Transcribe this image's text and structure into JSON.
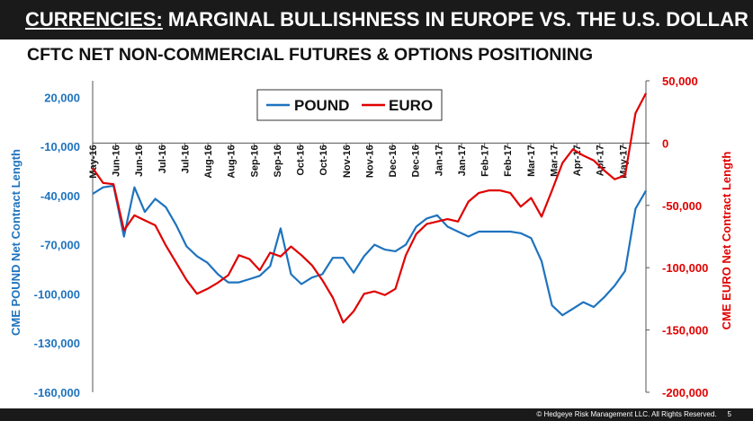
{
  "header": {
    "title_prefix": "CURRENCIES:",
    "title_rest": " MARGINAL BULLISHNESS IN EUROPE VS. THE U.S. DOLLAR"
  },
  "subtitle": "CFTC NET NON-COMMERCIAL FUTURES & OPTIONS POSITIONING",
  "footer": {
    "copyright": "© Hedgeye Risk Management LLC. All Rights Reserved.",
    "page": "5"
  },
  "colors": {
    "pound": "#1e73be",
    "euro": "#e00000"
  },
  "chart_data": {
    "type": "line",
    "ylabel": "CME POUND Net Contract Length",
    "ylabel_right": "CME EURO Net Contract Length",
    "ylim": [
      -160000,
      30000
    ],
    "ylim_right": [
      -200000,
      50000
    ],
    "y_ticks": [
      20000,
      -10000,
      -40000,
      -70000,
      -100000,
      -130000,
      -160000
    ],
    "y_tick_labels": [
      "20,000",
      "-10,000",
      "-40,000",
      "-70,000",
      "-100,000",
      "-130,000",
      "-160,000"
    ],
    "y_ticks_right": [
      50000,
      0,
      -50000,
      -100000,
      -150000,
      -200000
    ],
    "y_tick_labels_right": [
      "50,000",
      "0",
      "-50,000",
      "-100,000",
      "-150,000",
      "-200,000"
    ],
    "x_labels": [
      "May-16",
      "Jun-16",
      "Jun-16",
      "Jul-16",
      "Jul-16",
      "Aug-16",
      "Aug-16",
      "Sep-16",
      "Sep-16",
      "Oct-16",
      "Oct-16",
      "Nov-16",
      "Nov-16",
      "Dec-16",
      "Dec-16",
      "Jan-17",
      "Jan-17",
      "Feb-17",
      "Feb-17",
      "Mar-17",
      "Mar-17",
      "Apr-17",
      "Apr-17",
      "May-17"
    ],
    "legend_position": "top-center",
    "series": [
      {
        "name": "POUND",
        "axis": "left",
        "values": [
          -39000,
          -35000,
          -34000,
          -65000,
          -35000,
          -50000,
          -42000,
          -47000,
          -58000,
          -71000,
          -77000,
          -81000,
          -88000,
          -93000,
          -93000,
          -91000,
          -89000,
          -83000,
          -60000,
          -88000,
          -94000,
          -90000,
          -88000,
          -78000,
          -78000,
          -87000,
          -77000,
          -70000,
          -73000,
          -74000,
          -70000,
          -59000,
          -54000,
          -52000,
          -59000,
          -62000,
          -65000,
          -62000,
          -62000,
          -62000,
          -62000,
          -63000,
          -66000,
          -80000,
          -107000,
          -113000,
          -109000,
          -105000,
          -108000,
          -102000,
          -95000,
          -86000,
          -48000,
          -37000
        ]
      },
      {
        "name": "EURO",
        "axis": "right",
        "values": [
          -20000,
          -32000,
          -33000,
          -70000,
          -58000,
          -62000,
          -66000,
          -82000,
          -96000,
          -110000,
          -121000,
          -117000,
          -112000,
          -106000,
          -90000,
          -93000,
          -102000,
          -88000,
          -91000,
          -83000,
          -90000,
          -98000,
          -110000,
          -124000,
          -144000,
          -135000,
          -121000,
          -119000,
          -122000,
          -117000,
          -90000,
          -73000,
          -65000,
          -63000,
          -61000,
          -63000,
          -47000,
          -40000,
          -38000,
          -38000,
          -40000,
          -51000,
          -44000,
          -59000,
          -38000,
          -16000,
          -5000,
          -10000,
          -14000,
          -22000,
          -29000,
          -26000,
          24000,
          40000
        ]
      }
    ]
  }
}
